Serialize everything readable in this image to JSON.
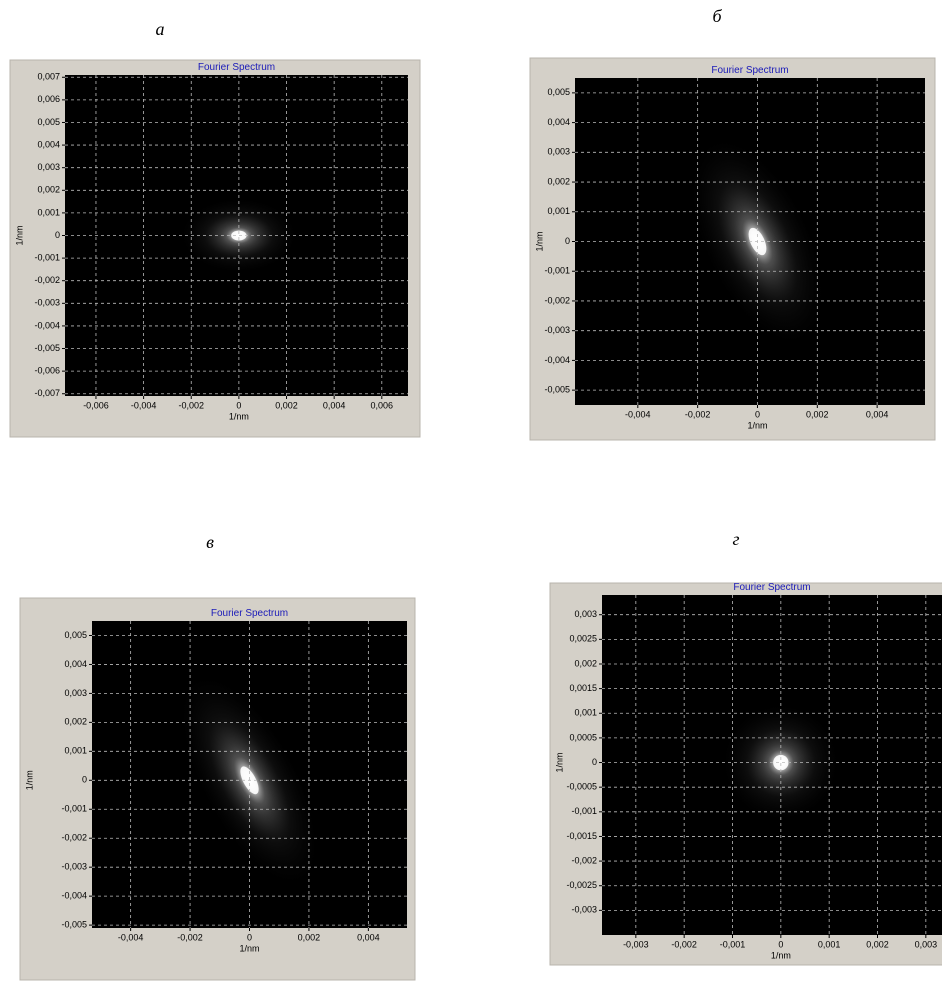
{
  "chart_data": [
    {
      "type": "heatmap",
      "panel_label": "а",
      "title": "Fourier Spectrum",
      "xlabel": "1/nm",
      "ylabel": "1/nm",
      "grid": true,
      "xlim": [
        -0.0073,
        0.0071
      ],
      "ylim": [
        -0.0071,
        0.0071
      ],
      "xticks": [
        {
          "value": -0.006,
          "label": "-0,006"
        },
        {
          "value": -0.004,
          "label": "-0,004"
        },
        {
          "value": -0.002,
          "label": "-0,002"
        },
        0,
        {
          "value": 0.002,
          "label": "0,002"
        },
        {
          "value": 0.004,
          "label": "0,004"
        },
        {
          "value": 0.006,
          "label": "0,006"
        }
      ],
      "yticks": [
        {
          "value": 0.007,
          "label": "0,007"
        },
        {
          "value": 0.006,
          "label": "0,006"
        },
        {
          "value": 0.005,
          "label": "0,005"
        },
        {
          "value": 0.004,
          "label": "0,004"
        },
        {
          "value": 0.003,
          "label": "0,003"
        },
        {
          "value": 0.002,
          "label": "0,002"
        },
        {
          "value": 0.001,
          "label": "0,001"
        },
        0,
        {
          "value": -0.001,
          "label": "-0,001"
        },
        {
          "value": -0.002,
          "label": "-0,002"
        },
        {
          "value": -0.003,
          "label": "-0,003"
        },
        {
          "value": -0.004,
          "label": "-0,004"
        },
        {
          "value": -0.005,
          "label": "-0,005"
        },
        {
          "value": -0.006,
          "label": "-0,006"
        },
        {
          "value": -0.007,
          "label": "-0,007"
        }
      ]
    },
    {
      "type": "heatmap",
      "panel_label": "б",
      "title": "Fourier Spectrum",
      "xlabel": "1/nm",
      "ylabel": "1/nm",
      "grid": true,
      "xlim": [
        -0.0061,
        0.0056
      ],
      "ylim": [
        -0.0055,
        0.0055
      ],
      "xticks": [
        {
          "value": -0.004,
          "label": "-0,004"
        },
        {
          "value": -0.002,
          "label": "-0,002"
        },
        0,
        {
          "value": 0.002,
          "label": "0,002"
        },
        {
          "value": 0.004,
          "label": "0,004"
        }
      ],
      "yticks": [
        {
          "value": 0.005,
          "label": "0,005"
        },
        {
          "value": 0.004,
          "label": "0,004"
        },
        {
          "value": 0.003,
          "label": "0,003"
        },
        {
          "value": 0.002,
          "label": "0,002"
        },
        {
          "value": 0.001,
          "label": "0,001"
        },
        0,
        {
          "value": -0.001,
          "label": "-0,001"
        },
        {
          "value": -0.002,
          "label": "-0,002"
        },
        {
          "value": -0.003,
          "label": "-0,003"
        },
        {
          "value": -0.004,
          "label": "-0,004"
        },
        {
          "value": -0.005,
          "label": "-0,005"
        }
      ]
    },
    {
      "type": "heatmap",
      "panel_label": "в",
      "title": "Fourier Spectrum",
      "xlabel": "1/nm",
      "ylabel": "1/nm",
      "grid": true,
      "xlim": [
        -0.0053,
        0.0053
      ],
      "ylim": [
        -0.0051,
        0.0055
      ],
      "xticks": [
        {
          "value": -0.004,
          "label": "-0,004"
        },
        {
          "value": -0.002,
          "label": "-0,002"
        },
        0,
        {
          "value": 0.002,
          "label": "0,002"
        },
        {
          "value": 0.004,
          "label": "0,004"
        }
      ],
      "yticks": [
        {
          "value": 0.005,
          "label": "0,005"
        },
        {
          "value": 0.004,
          "label": "0,004"
        },
        {
          "value": 0.003,
          "label": "0,003"
        },
        {
          "value": 0.002,
          "label": "0,002"
        },
        {
          "value": 0.001,
          "label": "0,001"
        },
        0,
        {
          "value": -0.001,
          "label": "-0,001"
        },
        {
          "value": -0.002,
          "label": "-0,002"
        },
        {
          "value": -0.003,
          "label": "-0,003"
        },
        {
          "value": -0.004,
          "label": "-0,004"
        },
        {
          "value": -0.005,
          "label": "-0,005"
        }
      ]
    },
    {
      "type": "heatmap",
      "panel_label": "г",
      "title": "Fourier Spectrum",
      "xlabel": "1/nm",
      "ylabel": "1/nm",
      "grid": true,
      "xlim": [
        -0.0037,
        0.0035
      ],
      "ylim": [
        -0.0035,
        0.0034
      ],
      "xticks": [
        {
          "value": -0.003,
          "label": "-0,003"
        },
        {
          "value": -0.002,
          "label": "-0,002"
        },
        {
          "value": -0.001,
          "label": "-0,001"
        },
        0,
        {
          "value": 0.001,
          "label": "0,001"
        },
        {
          "value": 0.002,
          "label": "0,002"
        },
        {
          "value": 0.003,
          "label": "0,003"
        }
      ],
      "yticks": [
        {
          "value": 0.003,
          "label": "0,003"
        },
        {
          "value": 0.0025,
          "label": "0,0025"
        },
        {
          "value": 0.002,
          "label": "0,002"
        },
        {
          "value": 0.0015,
          "label": "0,0015"
        },
        {
          "value": 0.001,
          "label": "0,001"
        },
        {
          "value": 0.0005,
          "label": "0,0005"
        },
        0,
        {
          "value": -0.0005,
          "label": "-0,0005"
        },
        {
          "value": -0.001,
          "label": "-0,001"
        },
        {
          "value": -0.0015,
          "label": "-0,0015"
        },
        {
          "value": -0.002,
          "label": "-0,002"
        },
        {
          "value": -0.0025,
          "label": "-0,0025"
        },
        {
          "value": -0.003,
          "label": "-0,003"
        }
      ]
    }
  ]
}
